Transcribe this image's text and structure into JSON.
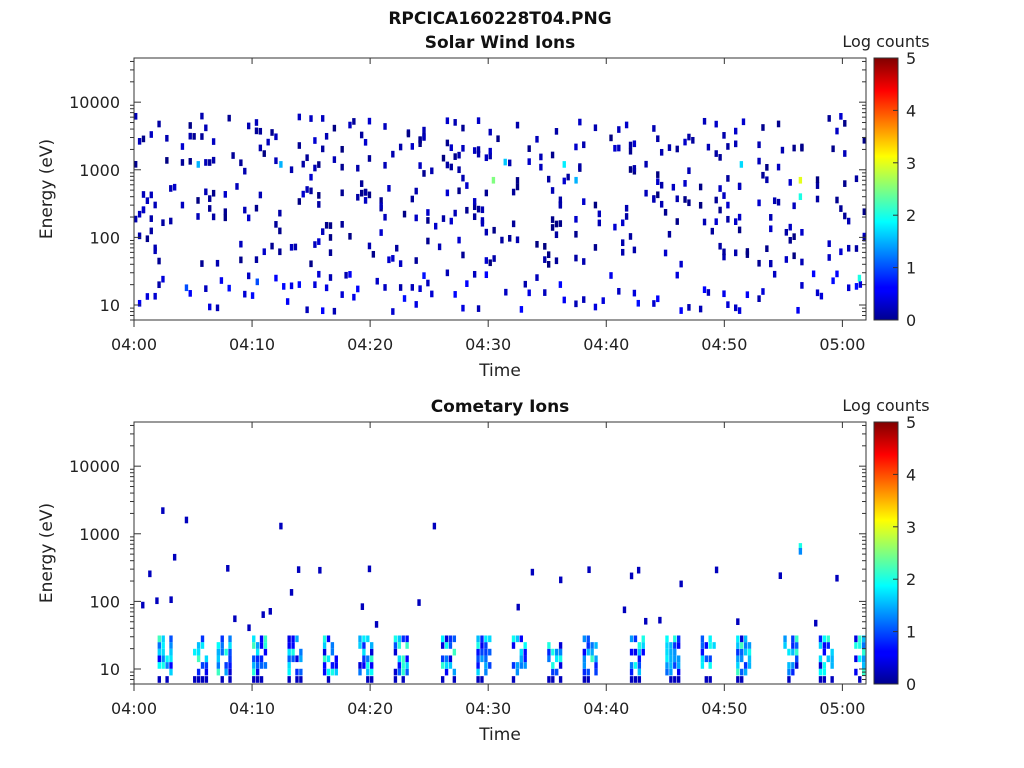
{
  "figure_title": "RPCICA160228T04.PNG",
  "chart_data": [
    {
      "type": "heatmap",
      "title": "Solar Wind Ions",
      "xlabel": "Time",
      "ylabel": "Energy (eV)",
      "y_scale": "log",
      "ylim": [
        6,
        45000
      ],
      "xlim": [
        "04:00",
        "05:02"
      ],
      "x_ticks": [
        "04:00",
        "04:10",
        "04:20",
        "04:30",
        "04:40",
        "04:50",
        "05:00"
      ],
      "y_ticks": [
        "10",
        "100",
        "1000",
        "10000"
      ],
      "colorbar": {
        "label": "Log counts",
        "min": 0,
        "max": 5,
        "ticks": [
          "0",
          "1",
          "2",
          "3",
          "4",
          "5"
        ],
        "colormap": "jet"
      },
      "notable_cells": [
        {
          "time": "04:04",
          "energy": 18,
          "value": 1
        },
        {
          "time": "04:05",
          "energy": 1200,
          "value": 1.5
        },
        {
          "time": "04:10",
          "energy": 22,
          "value": 1
        },
        {
          "time": "04:12",
          "energy": 1200,
          "value": 1.5
        },
        {
          "time": "04:30",
          "energy": 700,
          "value": 2.5
        },
        {
          "time": "04:31",
          "energy": 1300,
          "value": 1.6
        },
        {
          "time": "04:36",
          "energy": 1200,
          "value": 1.8
        },
        {
          "time": "04:37",
          "energy": 700,
          "value": 1.5
        },
        {
          "time": "04:51",
          "energy": 1200,
          "value": 1.7
        },
        {
          "time": "04:56",
          "energy": 700,
          "value": 3
        },
        {
          "time": "04:56",
          "energy": 400,
          "value": 2
        },
        {
          "time": "05:01",
          "energy": 25,
          "value": 2
        }
      ]
    },
    {
      "type": "heatmap",
      "title": "Cometary Ions",
      "xlabel": "Time",
      "ylabel": "Energy (eV)",
      "y_scale": "log",
      "ylim": [
        6,
        45000
      ],
      "xlim": [
        "04:00",
        "05:02"
      ],
      "x_ticks": [
        "04:00",
        "04:10",
        "04:20",
        "04:30",
        "04:40",
        "04:50",
        "05:00"
      ],
      "y_ticks": [
        "10",
        "100",
        "1000",
        "10000"
      ],
      "colorbar": {
        "label": "Log counts",
        "min": 0,
        "max": 5,
        "ticks": [
          "0",
          "1",
          "2",
          "3",
          "4",
          "5"
        ],
        "colormap": "jet"
      },
      "burst_times": [
        "04:02",
        "04:05",
        "04:07",
        "04:10",
        "04:13",
        "04:16",
        "04:19",
        "04:22",
        "04:26",
        "04:29",
        "04:32",
        "04:35",
        "04:38",
        "04:42",
        "04:45",
        "04:48",
        "04:51",
        "04:55",
        "04:58",
        "05:01"
      ],
      "scattered_cells": [
        {
          "time": "04:02",
          "energy": 2200,
          "value": 0.3
        },
        {
          "time": "04:03",
          "energy": 450,
          "value": 0.3
        },
        {
          "time": "04:04",
          "energy": 1600,
          "value": 0.3
        },
        {
          "time": "04:12",
          "energy": 1300,
          "value": 0.3
        },
        {
          "time": "04:25",
          "energy": 1300,
          "value": 0.3
        },
        {
          "time": "04:56",
          "energy": 650,
          "value": 2
        },
        {
          "time": "04:56",
          "energy": 550,
          "value": 1.3
        }
      ]
    }
  ]
}
